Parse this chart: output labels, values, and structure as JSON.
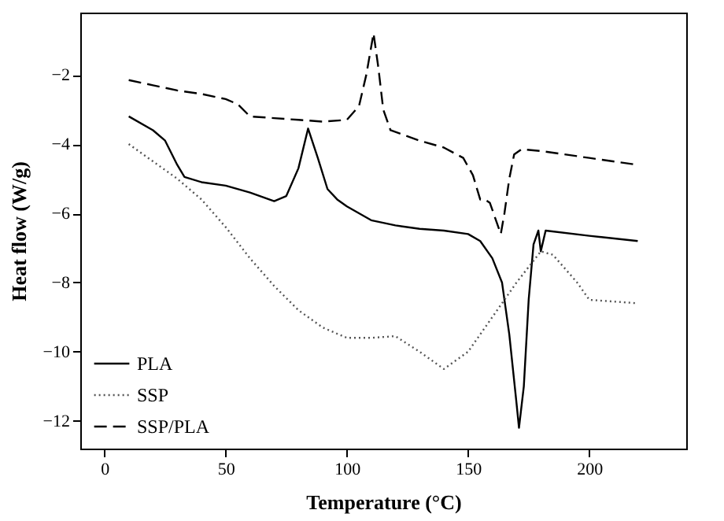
{
  "chart_data": {
    "type": "line",
    "xlabel": "Temperature (°C)",
    "ylabel": "Heat flow (W/g)",
    "xlim": [
      -10,
      240
    ],
    "ylim": [
      -12.8,
      -0.2
    ],
    "xticks": [
      0,
      50,
      100,
      150,
      200
    ],
    "yticks": [
      -12,
      -10,
      -8,
      -6,
      -4,
      -2
    ],
    "grid": false,
    "legend": "bottom left",
    "marker": "none",
    "series": [
      {
        "name": "PLA",
        "color": "#000000",
        "line_style": "solid",
        "x": [
          10,
          20,
          25,
          30,
          33,
          40,
          50,
          60,
          70,
          75,
          80,
          84,
          88,
          92,
          96,
          100,
          110,
          120,
          130,
          140,
          150,
          155,
          160,
          164,
          167,
          170,
          171,
          173,
          175,
          177,
          179,
          180,
          182,
          200,
          220
        ],
        "values": [
          -3.2,
          -3.6,
          -3.9,
          -4.6,
          -4.95,
          -5.1,
          -5.2,
          -5.4,
          -5.65,
          -5.5,
          -4.7,
          -3.55,
          -4.4,
          -5.3,
          -5.6,
          -5.8,
          -6.2,
          -6.35,
          -6.45,
          -6.5,
          -6.6,
          -6.8,
          -7.3,
          -8.0,
          -9.5,
          -11.5,
          -12.2,
          -11.0,
          -8.5,
          -6.9,
          -6.5,
          -7.1,
          -6.5,
          -6.65,
          -6.8
        ]
      },
      {
        "name": "SSP",
        "color": "#555555",
        "line_style": "dotted",
        "x": [
          10,
          20,
          30,
          40,
          50,
          60,
          70,
          80,
          90,
          100,
          110,
          120,
          130,
          140,
          150,
          160,
          170,
          180,
          185,
          195,
          200,
          210,
          220
        ],
        "values": [
          -4.0,
          -4.5,
          -5.0,
          -5.6,
          -6.4,
          -7.3,
          -8.1,
          -8.8,
          -9.3,
          -9.6,
          -9.6,
          -9.55,
          -10.0,
          -10.5,
          -10.0,
          -9.0,
          -8.0,
          -7.1,
          -7.2,
          -8.0,
          -8.5,
          -8.55,
          -8.6
        ]
      },
      {
        "name": "SSP/PLA",
        "color": "#000000",
        "line_style": "dashed",
        "x": [
          10,
          20,
          30,
          40,
          50,
          55,
          60,
          70,
          80,
          90,
          100,
          105,
          108,
          111,
          113,
          115,
          118,
          130,
          140,
          148,
          152,
          155,
          157,
          159,
          161,
          163.5,
          165,
          167,
          169,
          172,
          180,
          200,
          220
        ],
        "values": [
          -2.15,
          -2.3,
          -2.45,
          -2.55,
          -2.7,
          -2.85,
          -3.2,
          -3.25,
          -3.3,
          -3.35,
          -3.3,
          -2.9,
          -2.0,
          -0.8,
          -1.8,
          -3.0,
          -3.6,
          -3.9,
          -4.1,
          -4.4,
          -4.9,
          -5.6,
          -5.6,
          -5.7,
          -6.1,
          -6.6,
          -6.0,
          -5.0,
          -4.3,
          -4.15,
          -4.2,
          -4.4,
          -4.6
        ]
      }
    ]
  }
}
